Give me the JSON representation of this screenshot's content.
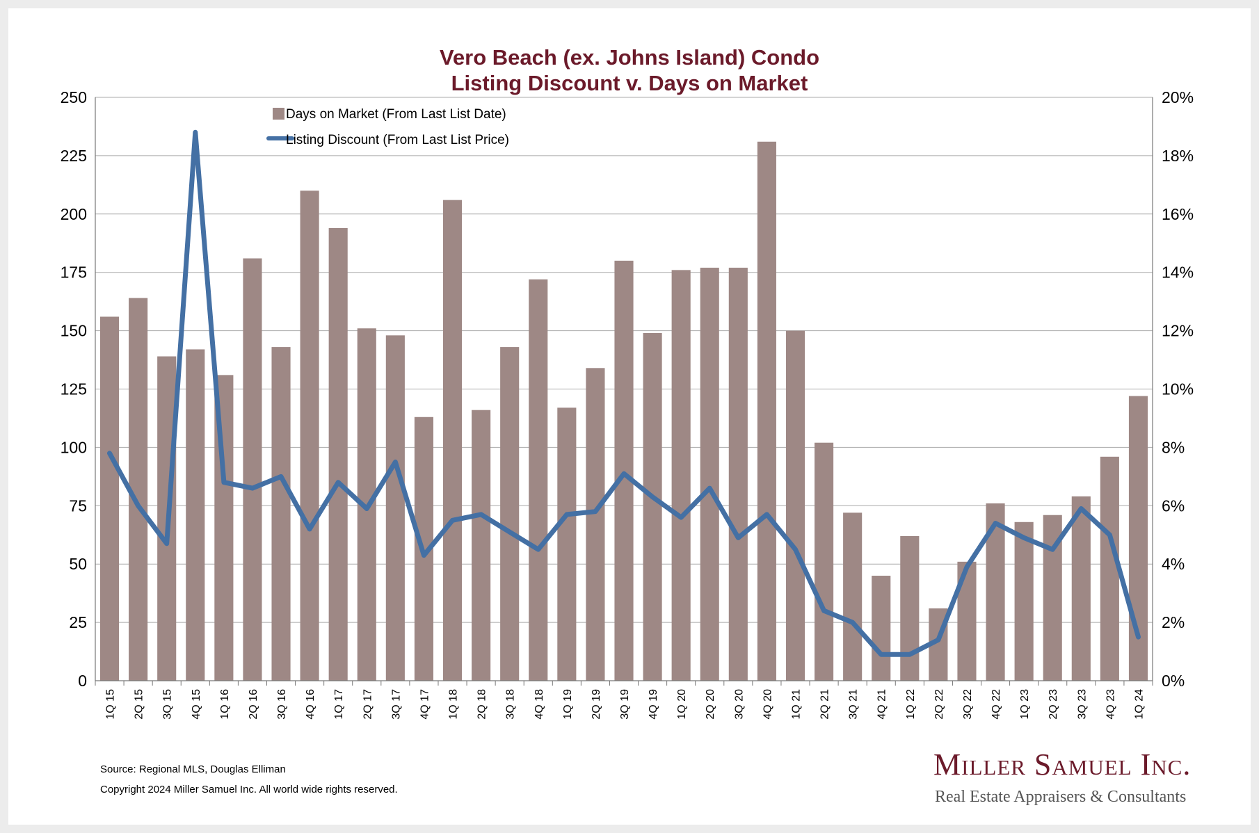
{
  "chart_data": {
    "type": "bar+line",
    "title": [
      "Vero Beach (ex. Johns Island) Condo",
      "Listing Discount v. Days on Market"
    ],
    "categories": [
      "1Q 15",
      "2Q 15",
      "3Q 15",
      "4Q 15",
      "1Q 16",
      "2Q 16",
      "3Q 16",
      "4Q 16",
      "1Q 17",
      "2Q 17",
      "3Q 17",
      "4Q 17",
      "1Q 18",
      "2Q 18",
      "3Q 18",
      "4Q 18",
      "1Q 19",
      "2Q 19",
      "3Q 19",
      "4Q 19",
      "1Q 20",
      "2Q 20",
      "3Q 20",
      "4Q 20",
      "1Q 21",
      "2Q 21",
      "3Q 21",
      "4Q 21",
      "1Q 22",
      "2Q 22",
      "3Q 22",
      "4Q 22",
      "1Q 23",
      "2Q 23",
      "3Q 23",
      "4Q 23",
      "1Q 24"
    ],
    "series": [
      {
        "name": "Days on Market (From Last List Date)",
        "type": "bar",
        "axis": "left",
        "color": "#9e8885",
        "values": [
          156,
          164,
          139,
          142,
          131,
          181,
          143,
          210,
          194,
          151,
          148,
          113,
          206,
          116,
          143,
          172,
          117,
          134,
          180,
          149,
          176,
          177,
          177,
          231,
          150,
          102,
          72,
          45,
          62,
          31,
          51,
          76,
          68,
          71,
          79,
          96,
          122
        ]
      },
      {
        "name": "Listing Discount (From Last List Price)",
        "type": "line",
        "axis": "right",
        "color": "#4470a4",
        "values": [
          7.8,
          6.0,
          4.7,
          18.8,
          6.8,
          6.6,
          7.0,
          5.2,
          6.8,
          5.9,
          7.5,
          4.3,
          5.5,
          5.7,
          5.1,
          4.5,
          5.7,
          5.8,
          7.1,
          6.3,
          5.6,
          6.6,
          4.9,
          5.7,
          4.5,
          2.4,
          2.0,
          0.9,
          0.9,
          1.4,
          3.9,
          5.4,
          4.9,
          4.5,
          5.9,
          5.0,
          1.5
        ]
      }
    ],
    "y_left": {
      "min": 0,
      "max": 250,
      "ticks": [
        "0",
        "25",
        "50",
        "75",
        "100",
        "125",
        "150",
        "175",
        "200",
        "225",
        "250"
      ]
    },
    "y_right": {
      "min": 0,
      "max": 20,
      "ticks": [
        "0%",
        "2%",
        "4%",
        "6%",
        "8%",
        "10%",
        "12%",
        "14%",
        "16%",
        "18%",
        "20%"
      ]
    },
    "grid": true,
    "legend_position": "top-left"
  },
  "footer": {
    "source": "Source: Regional MLS, Douglas Elliman",
    "copyright": "Copyright 2024 Miller Samuel Inc.  All world wide rights reserved."
  },
  "logo": {
    "name": "Miller Samuel Inc.",
    "tagline": "Real Estate Appraisers & Consultants"
  }
}
